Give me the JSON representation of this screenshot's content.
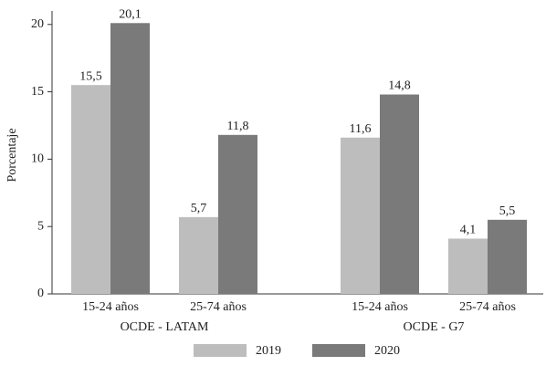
{
  "chart_data": {
    "type": "bar",
    "ylabel": "Porcentaje",
    "categories": [
      "15-24 años",
      "25-74 años",
      "15-24 años",
      "25-74 años"
    ],
    "groups": [
      "OCDE - LATAM",
      "OCDE - G7"
    ],
    "series": [
      {
        "name": "2019",
        "color": "#bdbdbd",
        "values": [
          15.5,
          5.7,
          11.6,
          4.1
        ],
        "value_labels": [
          "15,5",
          "5,7",
          "11,6",
          "4,1"
        ]
      },
      {
        "name": "2020",
        "color": "#7a7a7a",
        "values": [
          20.1,
          11.8,
          14.8,
          5.5
        ],
        "value_labels": [
          "20,1",
          "11,8",
          "14,8",
          "5,5"
        ]
      }
    ],
    "ylim": [
      0,
      21
    ],
    "yticks": [
      0,
      5,
      10,
      15,
      20
    ],
    "grid": false
  }
}
